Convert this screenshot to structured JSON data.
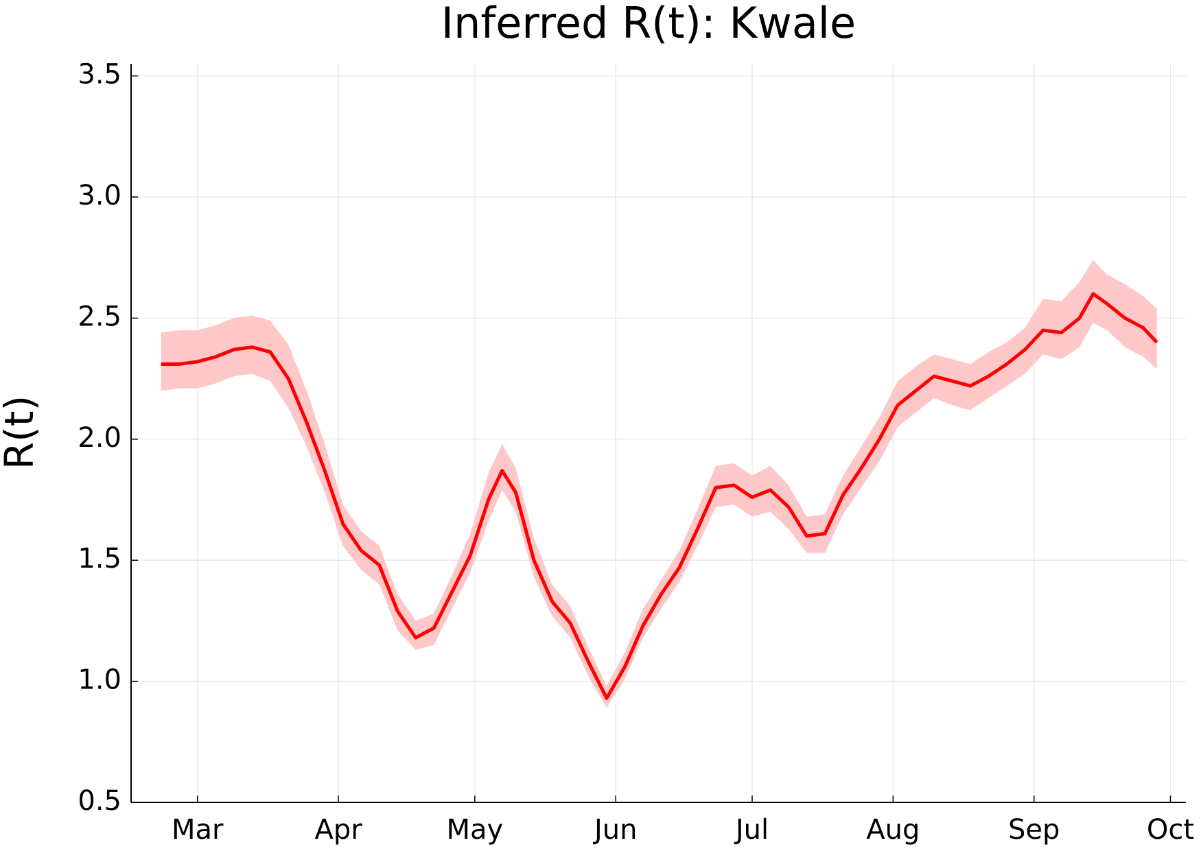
{
  "chart_data": {
    "type": "line",
    "title": "Inferred R(t): Kwale",
    "y_label": "R(t)",
    "x": [
      -8,
      -4,
      0,
      4,
      8,
      12,
      16,
      20,
      24,
      28,
      32,
      36,
      40,
      44,
      48,
      52,
      56,
      60,
      64,
      67,
      70,
      74,
      78,
      82,
      86,
      90,
      94,
      98,
      102,
      106,
      110,
      114,
      118,
      122,
      126,
      130,
      134,
      138,
      142,
      146,
      150,
      154,
      158,
      162,
      166,
      170,
      174,
      178,
      182,
      186,
      190,
      194,
      197,
      200,
      204,
      208,
      211
    ],
    "series": [
      {
        "color": "#ff0000",
        "band_color": "#ffc8c8",
        "values": [
          2.31,
          2.31,
          2.32,
          2.34,
          2.37,
          2.38,
          2.36,
          2.25,
          2.07,
          1.87,
          1.65,
          1.54,
          1.48,
          1.29,
          1.18,
          1.22,
          1.37,
          1.52,
          1.75,
          1.87,
          1.78,
          1.5,
          1.33,
          1.24,
          1.08,
          0.93,
          1.06,
          1.23,
          1.36,
          1.47,
          1.63,
          1.8,
          1.81,
          1.76,
          1.79,
          1.72,
          1.6,
          1.61,
          1.77,
          1.88,
          2.0,
          2.14,
          2.2,
          2.26,
          2.24,
          2.22,
          2.26,
          2.31,
          2.37,
          2.45,
          2.44,
          2.5,
          2.6,
          2.56,
          2.5,
          2.46,
          2.4
        ],
        "lower": [
          2.2,
          2.21,
          2.21,
          2.23,
          2.26,
          2.27,
          2.24,
          2.13,
          1.97,
          1.78,
          1.56,
          1.46,
          1.4,
          1.21,
          1.13,
          1.15,
          1.3,
          1.45,
          1.66,
          1.79,
          1.7,
          1.43,
          1.27,
          1.18,
          1.02,
          0.89,
          1.01,
          1.18,
          1.3,
          1.41,
          1.56,
          1.72,
          1.73,
          1.68,
          1.7,
          1.63,
          1.53,
          1.53,
          1.69,
          1.8,
          1.91,
          2.05,
          2.11,
          2.17,
          2.14,
          2.12,
          2.17,
          2.22,
          2.27,
          2.35,
          2.33,
          2.38,
          2.48,
          2.45,
          2.38,
          2.34,
          2.29
        ],
        "upper": [
          2.44,
          2.45,
          2.45,
          2.47,
          2.5,
          2.51,
          2.49,
          2.39,
          2.2,
          1.98,
          1.73,
          1.62,
          1.56,
          1.36,
          1.25,
          1.28,
          1.44,
          1.61,
          1.86,
          1.98,
          1.88,
          1.59,
          1.4,
          1.31,
          1.14,
          0.98,
          1.12,
          1.3,
          1.42,
          1.54,
          1.71,
          1.89,
          1.9,
          1.85,
          1.89,
          1.81,
          1.68,
          1.69,
          1.85,
          1.97,
          2.09,
          2.24,
          2.3,
          2.35,
          2.33,
          2.31,
          2.36,
          2.4,
          2.46,
          2.58,
          2.57,
          2.65,
          2.74,
          2.68,
          2.64,
          2.59,
          2.54
        ]
      }
    ],
    "xlim": [
      -14.6,
      217.4
    ],
    "xticks": [
      {
        "value": 0,
        "label": "Mar"
      },
      {
        "value": 31,
        "label": "Apr"
      },
      {
        "value": 61,
        "label": "May"
      },
      {
        "value": 92,
        "label": "Jun"
      },
      {
        "value": 122,
        "label": "Jul"
      },
      {
        "value": 153,
        "label": "Aug"
      },
      {
        "value": 184,
        "label": "Sep"
      },
      {
        "value": 214,
        "label": "Oct"
      }
    ],
    "ylim": [
      0.5,
      3.55
    ],
    "yticks": [
      {
        "value": 0.5,
        "label": "0.5"
      },
      {
        "value": 1,
        "label": "1.0"
      },
      {
        "value": 1.5,
        "label": "1.5"
      },
      {
        "value": 2,
        "label": "2.0"
      },
      {
        "value": 2.5,
        "label": "2.5"
      },
      {
        "value": 3,
        "label": "3.0"
      },
      {
        "value": 3.5,
        "label": "3.5"
      }
    ],
    "grid": true
  }
}
